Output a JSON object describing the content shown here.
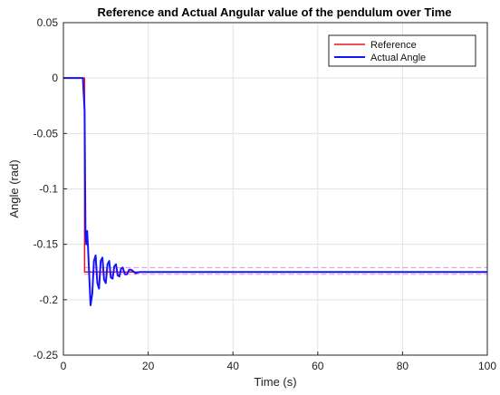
{
  "chart_data": {
    "type": "line",
    "title": "Reference and Actual Angular value of the pendulum over Time",
    "xlabel": "Time (s)",
    "ylabel": "Angle (rad)",
    "xlim": [
      0,
      100
    ],
    "ylim": [
      -0.25,
      0.05
    ],
    "xticks": [
      0,
      20,
      40,
      60,
      80,
      100
    ],
    "xtick_labels": [
      "0",
      "20",
      "40",
      "60",
      "80",
      "100"
    ],
    "yticks": [
      0.05,
      0,
      -0.05,
      -0.1,
      -0.15,
      -0.2,
      -0.25
    ],
    "ytick_labels": [
      "0.05",
      "0",
      "-0.05",
      "-0.1",
      "-0.15",
      "-0.2",
      "-0.25"
    ],
    "grid": true,
    "legend_position": "top-right",
    "series": [
      {
        "name": "Reference",
        "color": "#e8141c",
        "x": [
          0,
          5,
          5,
          100
        ],
        "y": [
          0,
          0,
          -0.175,
          -0.175
        ]
      },
      {
        "name": "Actual Angle",
        "color": "#1414ff",
        "x": [
          0,
          4.6,
          5.0,
          5.2,
          5.4,
          5.6,
          5.8,
          6.0,
          6.4,
          6.8,
          7.2,
          7.6,
          8.0,
          8.4,
          8.8,
          9.2,
          9.6,
          10.0,
          10.4,
          10.8,
          11.2,
          11.6,
          12.0,
          12.4,
          12.8,
          13.2,
          13.6,
          14.0,
          14.5,
          15.0,
          15.5,
          16.0,
          17.0,
          18.0,
          20.0,
          25.0,
          100.0
        ],
        "y": [
          0,
          0,
          -0.03,
          -0.14,
          -0.15,
          -0.138,
          -0.152,
          -0.17,
          -0.205,
          -0.195,
          -0.165,
          -0.16,
          -0.185,
          -0.19,
          -0.165,
          -0.162,
          -0.182,
          -0.185,
          -0.168,
          -0.165,
          -0.18,
          -0.181,
          -0.17,
          -0.168,
          -0.178,
          -0.179,
          -0.172,
          -0.171,
          -0.177,
          -0.177,
          -0.173,
          -0.173,
          -0.176,
          -0.175,
          -0.175,
          -0.175,
          -0.175
        ]
      }
    ],
    "reference_bands": [
      {
        "y": -0.171,
        "color": "#e090e0",
        "style": "dashed"
      },
      {
        "y": -0.177,
        "color": "#e090e0",
        "style": "dashed"
      }
    ]
  }
}
